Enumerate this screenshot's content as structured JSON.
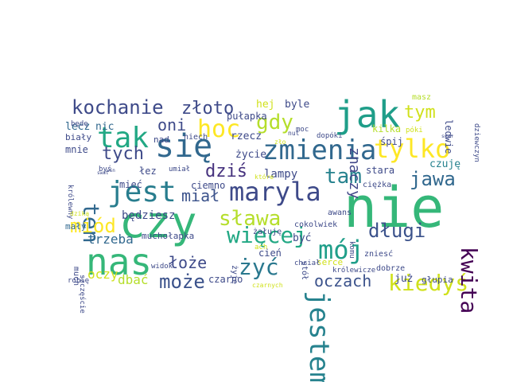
{
  "words": [
    {
      "text": "nie",
      "color": "#35b779"
    },
    {
      "text": "czy",
      "color": "#35b779"
    },
    {
      "text": "nas",
      "color": "#35b779"
    },
    {
      "text": "jak",
      "color": "#1f9e89"
    },
    {
      "text": "się",
      "color": "#31688e"
    },
    {
      "text": "zmienia",
      "color": "#31688e"
    },
    {
      "text": "tak",
      "color": "#22a884"
    },
    {
      "text": "hoc",
      "color": "#fde725"
    },
    {
      "text": "jest",
      "color": "#287d8e"
    },
    {
      "text": "marylа",
      "color": "#3e4a89"
    },
    {
      "text": "tylko",
      "color": "#fde725"
    },
    {
      "text": "mój",
      "color": "#1f9e89"
    },
    {
      "text": "jestem",
      "color": "#26828e"
    },
    {
      "text": "kochanie",
      "color": "#3e4a89"
    },
    {
      "text": "złoto",
      "color": "#3e4a89"
    },
    {
      "text": "gdy",
      "color": "#b5de2b"
    },
    {
      "text": "ten",
      "color": "#31688e"
    },
    {
      "text": "więcej",
      "color": "#22a884"
    },
    {
      "text": "sława",
      "color": "#b5de2b"
    },
    {
      "text": "miód",
      "color": "#fde725"
    },
    {
      "text": "żyć",
      "color": "#2a788e"
    },
    {
      "text": "kiedyś",
      "color": "#d0e11c"
    },
    {
      "text": "może",
      "color": "#3b528b"
    },
    {
      "text": "kwita",
      "color": "#440154"
    },
    {
      "text": "tam",
      "color": "#26828e"
    },
    {
      "text": "jawa",
      "color": "#31688e"
    },
    {
      "text": "długi",
      "color": "#3b528b"
    },
    {
      "text": "dziś",
      "color": "#46327e"
    },
    {
      "text": "tym",
      "color": "#d0e11c"
    },
    {
      "text": "tych",
      "color": "#3e4a89"
    },
    {
      "text": "oni",
      "color": "#3e4a89"
    },
    {
      "text": "miał",
      "color": "#3b528b"
    },
    {
      "text": "łoże",
      "color": "#3e4a89"
    },
    {
      "text": "oczach",
      "color": "#3b528b"
    },
    {
      "text": "znaczy",
      "color": "#404688"
    },
    {
      "text": "trzeba",
      "color": "#31688e"
    },
    {
      "text": "dbać",
      "color": "#b5de2b"
    },
    {
      "text": "oczy",
      "color": "#d0e11c"
    },
    {
      "text": "hej",
      "color": "#d0e11c"
    },
    {
      "text": "byle",
      "color": "#3e4a89"
    },
    {
      "text": "lecz",
      "color": "#31688e"
    },
    {
      "text": "nic",
      "color": "#31688e"
    },
    {
      "text": "mnie",
      "color": "#3e4a89"
    },
    {
      "text": "życie",
      "color": "#3e4a89"
    },
    {
      "text": "lampy",
      "color": "#3e4a89"
    },
    {
      "text": "ciemno",
      "color": "#3e4a89"
    },
    {
      "text": "będziesz",
      "color": "#3e4a89"
    },
    {
      "text": "mały",
      "color": "#31688e"
    },
    {
      "text": "cień",
      "color": "#3e4a89"
    },
    {
      "text": "być",
      "color": "#3e4a89"
    },
    {
      "text": "czuję",
      "color": "#26828e"
    },
    {
      "text": "kilka",
      "color": "#b5de2b"
    },
    {
      "text": "śpij",
      "color": "#3e4a89"
    },
    {
      "text": "stara",
      "color": "#3e4a89"
    },
    {
      "text": "już",
      "color": "#3e4a89"
    },
    {
      "text": "serce",
      "color": "#d0e11c"
    },
    {
      "text": "głupia",
      "color": "#3e4a89"
    },
    {
      "text": "czarno",
      "color": "#3e4a89"
    },
    {
      "text": "mieć",
      "color": "#3e4a89"
    },
    {
      "text": "łez",
      "color": "#3e4a89"
    },
    {
      "text": "nad",
      "color": "#3e4a89"
    },
    {
      "text": "rzecz",
      "color": "#3e4a89"
    },
    {
      "text": "pułapka",
      "color": "#3e4a89"
    },
    {
      "text": "biały",
      "color": "#3e4a89"
    },
    {
      "text": "muchołapka",
      "color": "#3e4a89"
    },
    {
      "text": "dobrze",
      "color": "#3e4a89"
    },
    {
      "text": "ledwie",
      "color": "#3e4a89"
    },
    {
      "text": "cokolwiek",
      "color": "#3e4a89"
    },
    {
      "text": "ciężka",
      "color": "#3e4a89"
    },
    {
      "text": "awans",
      "color": "#3e4a89"
    },
    {
      "text": "żałuję",
      "color": "#3e4a89"
    },
    {
      "text": "masz",
      "color": "#b5de2b"
    },
    {
      "text": "dziewczyn",
      "color": "#3e4a89"
    },
    {
      "text": "widok",
      "color": "#3e4a89"
    },
    {
      "text": "robię",
      "color": "#3e4a89"
    },
    {
      "text": "much",
      "color": "#3e4a89"
    },
    {
      "text": "niech",
      "color": "#3e4a89"
    },
    {
      "text": "umiał",
      "color": "#3e4a89"
    },
    {
      "text": "dopóki",
      "color": "#3e4a89"
    },
    {
      "text": "zniesć",
      "color": "#3e4a89"
    },
    {
      "text": "chciał",
      "color": "#3e4a89"
    },
    {
      "text": "komu",
      "color": "#3e4a89"
    },
    {
      "text": "będę",
      "color": "#3e4a89"
    },
    {
      "text": "królewny",
      "color": "#3e4a89"
    },
    {
      "text": "byś",
      "color": "#3e4a89"
    },
    {
      "text": "szczęście",
      "color": "#3e4a89"
    },
    {
      "text": "dziką",
      "color": "#d0e11c"
    },
    {
      "text": "żyję",
      "color": "#3e4a89"
    },
    {
      "text": "ach",
      "color": "#d0e11c"
    },
    {
      "text": "stół",
      "color": "#3e4a89"
    },
    {
      "text": "królewicze",
      "color": "#3e4a89"
    },
    {
      "text": "czarnych",
      "color": "#d0e11c"
    },
    {
      "text": "które",
      "color": "#d0e11c"
    },
    {
      "text": "moc",
      "color": "#3e4a89"
    },
    {
      "text": "nut",
      "color": "#3e4a89"
    },
    {
      "text": "póki",
      "color": "#d0e11c"
    },
    {
      "text": "zło",
      "color": "#d0e11c"
    },
    {
      "text": "swan",
      "color": "#3e4a89"
    },
    {
      "text": "swat",
      "color": "#3e4a89"
    },
    {
      "text": "wśn",
      "color": "#3e4a89"
    }
  ]
}
